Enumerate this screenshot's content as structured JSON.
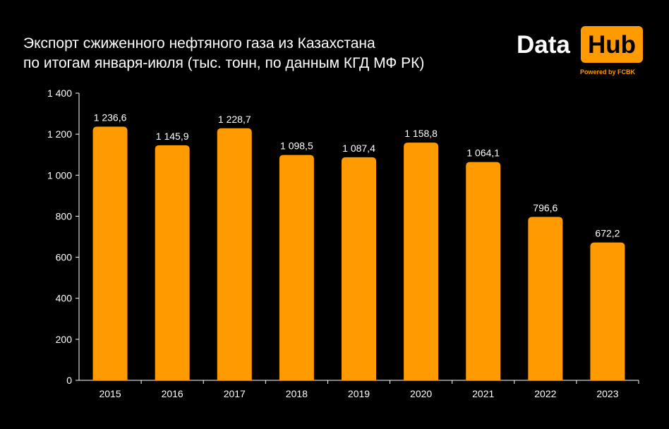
{
  "title_lines": [
    "Экспорт сжиженного нефтяного газа из Казахстана",
    "по итогам января-июля (тыс. тонн, по данным КГД МФ РК)"
  ],
  "logo": {
    "word1": "Data",
    "word2": "Hub",
    "tagline": "Powered by FCBK"
  },
  "colors": {
    "background": "#000000",
    "bar": "#ff9a00",
    "text": "#ffffff",
    "axis": "#ffffff"
  },
  "chart_data": {
    "type": "bar",
    "categories": [
      "2015",
      "2016",
      "2017",
      "2018",
      "2019",
      "2020",
      "2021",
      "2022",
      "2023"
    ],
    "values": [
      1236.6,
      1145.9,
      1228.7,
      1098.5,
      1087.4,
      1158.8,
      1064.1,
      796.6,
      672.2
    ],
    "data_labels": [
      "1 236,6",
      "1 145,9",
      "1 228,7",
      "1 098,5",
      "1 087,4",
      "1 158,8",
      "1 064,1",
      "796,6",
      "672,2"
    ],
    "title": "Экспорт сжиженного нефтяного газа из Казахстана по итогам января-июля (тыс. тонн, по данным КГД МФ РК)",
    "xlabel": "",
    "ylabel": "",
    "ylim": [
      0,
      1400
    ],
    "yticks": [
      0,
      200,
      400,
      600,
      800,
      1000,
      1200,
      1400
    ],
    "ytick_labels": [
      "0",
      "200",
      "400",
      "600",
      "800",
      "1 000",
      "1 200",
      "1 400"
    ],
    "grid": false,
    "legend": "none"
  }
}
